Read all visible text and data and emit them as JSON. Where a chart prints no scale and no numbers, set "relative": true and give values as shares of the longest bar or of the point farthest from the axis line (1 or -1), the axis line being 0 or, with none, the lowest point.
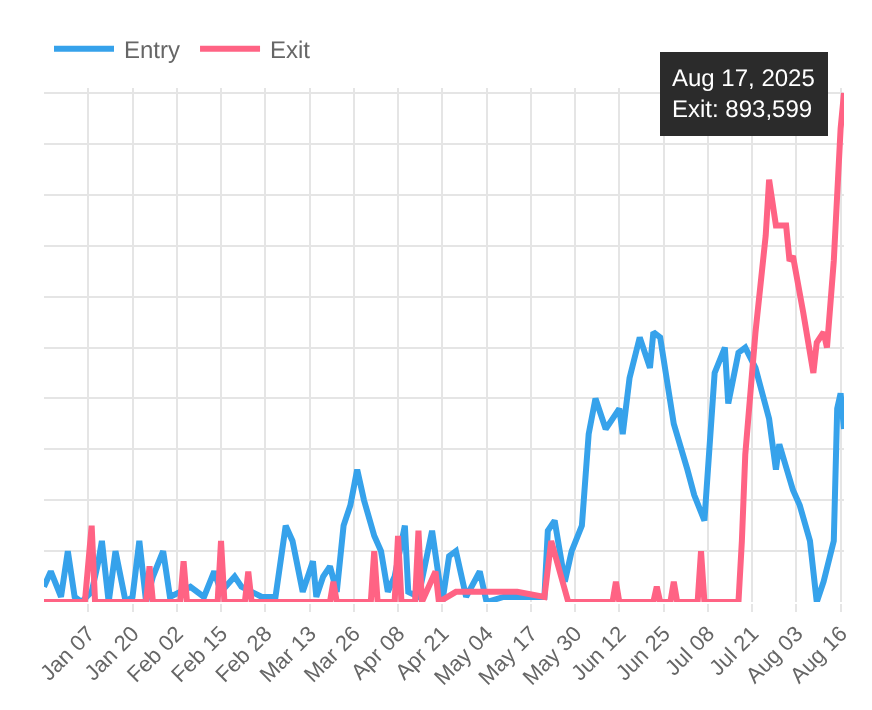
{
  "chart_data": {
    "type": "line",
    "relative": true,
    "grid": true,
    "legend": "top left",
    "marker": "none",
    "line_style": "solid",
    "xlim": [
      "2024-12-25",
      "2025-08-17"
    ],
    "xticks": [
      {
        "value": "2025-01-07",
        "label": "Jan 07"
      },
      {
        "value": "2025-01-20",
        "label": "Jan 20"
      },
      {
        "value": "2025-02-02",
        "label": "Feb 02"
      },
      {
        "value": "2025-02-15",
        "label": "Feb 15"
      },
      {
        "value": "2025-02-28",
        "label": "Feb 28"
      },
      {
        "value": "2025-03-13",
        "label": "Mar 13"
      },
      {
        "value": "2025-03-26",
        "label": "Mar 26"
      },
      {
        "value": "2025-04-08",
        "label": "Apr 08"
      },
      {
        "value": "2025-04-21",
        "label": "Apr 21"
      },
      {
        "value": "2025-05-04",
        "label": "May 04"
      },
      {
        "value": "2025-05-17",
        "label": "May 17"
      },
      {
        "value": "2025-05-30",
        "label": "May 30"
      },
      {
        "value": "2025-06-12",
        "label": "Jun 12"
      },
      {
        "value": "2025-06-25",
        "label": "Jun 25"
      },
      {
        "value": "2025-07-08",
        "label": "Jul 08"
      },
      {
        "value": "2025-07-21",
        "label": "Jul 21"
      },
      {
        "value": "2025-08-03",
        "label": "Aug 03"
      },
      {
        "value": "2025-08-16",
        "label": "Aug 16"
      }
    ],
    "series": [
      {
        "name": "Entry",
        "color": "#36a2eb",
        "x": [
          "2024-12-25",
          "2024-12-27",
          "2024-12-30",
          "2025-01-01",
          "2025-01-03",
          "2025-01-05",
          "2025-01-08",
          "2025-01-10",
          "2025-01-11",
          "2025-01-13",
          "2025-01-15",
          "2025-01-18",
          "2025-01-20",
          "2025-01-22",
          "2025-01-24",
          "2025-01-26",
          "2025-01-29",
          "2025-01-31",
          "2025-02-03",
          "2025-02-06",
          "2025-02-10",
          "2025-02-13",
          "2025-02-15",
          "2025-02-19",
          "2025-02-21",
          "2025-02-24",
          "2025-02-27",
          "2025-03-03",
          "2025-03-06",
          "2025-03-08",
          "2025-03-11",
          "2025-03-13",
          "2025-03-14",
          "2025-03-15",
          "2025-03-17",
          "2025-03-19",
          "2025-03-21",
          "2025-03-23",
          "2025-03-25",
          "2025-03-27",
          "2025-03-29",
          "2025-04-01",
          "2025-04-03",
          "2025-04-05",
          "2025-04-07",
          "2025-04-10",
          "2025-04-11",
          "2025-04-14",
          "2025-04-18",
          "2025-04-21",
          "2025-04-23",
          "2025-04-25",
          "2025-04-28",
          "2025-05-02",
          "2025-05-04",
          "2025-05-09",
          "2025-05-21",
          "2025-05-22",
          "2025-05-24",
          "2025-05-27",
          "2025-05-29",
          "2025-06-01",
          "2025-06-03",
          "2025-06-05",
          "2025-06-08",
          "2025-06-10",
          "2025-06-12",
          "2025-06-13",
          "2025-06-15",
          "2025-06-18",
          "2025-06-21",
          "2025-06-22",
          "2025-06-24",
          "2025-06-28",
          "2025-07-02",
          "2025-07-04",
          "2025-07-07",
          "2025-07-10",
          "2025-07-13",
          "2025-07-14",
          "2025-07-17",
          "2025-07-19",
          "2025-07-22",
          "2025-07-26",
          "2025-07-28",
          "2025-07-29",
          "2025-08-02",
          "2025-08-04",
          "2025-08-07",
          "2025-08-09",
          "2025-08-11",
          "2025-08-14",
          "2025-08-15",
          "2025-08-16",
          "2025-08-17"
        ],
        "values": [
          0.03,
          0.06,
          0.01,
          0.1,
          0.01,
          0.0,
          0.02,
          0.08,
          0.12,
          0.0,
          0.1,
          0.0,
          0.01,
          0.12,
          0.0,
          0.05,
          0.1,
          0.01,
          0.02,
          0.03,
          0.01,
          0.06,
          0.02,
          0.05,
          0.03,
          0.02,
          0.01,
          0.01,
          0.15,
          0.12,
          0.02,
          0.06,
          0.08,
          0.01,
          0.05,
          0.07,
          0.02,
          0.15,
          0.19,
          0.26,
          0.2,
          0.13,
          0.1,
          0.02,
          0.05,
          0.15,
          0.02,
          0.01,
          0.14,
          0.0,
          0.09,
          0.1,
          0.01,
          0.06,
          0.0,
          0.01,
          0.01,
          0.14,
          0.16,
          0.04,
          0.1,
          0.15,
          0.33,
          0.4,
          0.34,
          0.36,
          0.38,
          0.33,
          0.44,
          0.52,
          0.46,
          0.53,
          0.52,
          0.35,
          0.26,
          0.21,
          0.16,
          0.45,
          0.5,
          0.39,
          0.49,
          0.5,
          0.46,
          0.36,
          0.26,
          0.31,
          0.22,
          0.19,
          0.12,
          0.0,
          0.04,
          0.12,
          0.38,
          0.41,
          0.34
        ]
      },
      {
        "name": "Exit",
        "color": "#ff6384",
        "x": [
          "2024-12-25",
          "2025-01-06",
          "2025-01-08",
          "2025-01-09",
          "2025-01-24",
          "2025-01-25",
          "2025-01-26",
          "2025-02-03",
          "2025-02-04",
          "2025-02-05",
          "2025-02-14",
          "2025-02-15",
          "2025-02-16",
          "2025-02-22",
          "2025-02-23",
          "2025-02-24",
          "2025-03-19",
          "2025-03-20",
          "2025-03-21",
          "2025-03-31",
          "2025-04-01",
          "2025-04-02",
          "2025-04-07",
          "2025-04-08",
          "2025-04-09",
          "2025-04-13",
          "2025-04-14",
          "2025-04-15",
          "2025-04-19",
          "2025-04-20",
          "2025-04-25",
          "2025-05-13",
          "2025-05-21",
          "2025-05-23",
          "2025-05-28",
          "2025-06-10",
          "2025-06-11",
          "2025-06-12",
          "2025-06-22",
          "2025-06-23",
          "2025-06-24",
          "2025-06-27",
          "2025-06-28",
          "2025-06-29",
          "2025-07-05",
          "2025-07-06",
          "2025-07-07",
          "2025-07-17",
          "2025-07-18",
          "2025-07-19",
          "2025-07-22",
          "2025-07-25",
          "2025-07-26",
          "2025-07-28",
          "2025-07-31",
          "2025-08-01",
          "2025-08-02",
          "2025-08-05",
          "2025-08-08",
          "2025-08-09",
          "2025-08-11",
          "2025-08-12",
          "2025-08-14",
          "2025-08-16",
          "2025-08-17"
        ],
        "values": [
          0.0,
          0.0,
          0.15,
          0.0,
          0.0,
          0.07,
          0.0,
          0.0,
          0.08,
          0.0,
          0.0,
          0.12,
          0.0,
          0.0,
          0.06,
          0.0,
          0.0,
          0.04,
          0.0,
          0.0,
          0.1,
          0.0,
          0.0,
          0.13,
          0.0,
          0.0,
          0.14,
          0.0,
          0.06,
          0.0,
          0.02,
          0.02,
          0.01,
          0.12,
          0.0,
          0.0,
          0.04,
          0.0,
          0.0,
          0.03,
          0.0,
          0.0,
          0.04,
          0.0,
          0.0,
          0.1,
          0.0,
          0.0,
          0.12,
          0.29,
          0.53,
          0.72,
          0.83,
          0.74,
          0.74,
          0.67,
          0.68,
          0.57,
          0.45,
          0.51,
          0.53,
          0.5,
          0.67,
          0.93,
          1.0
        ]
      }
    ],
    "annotations": [
      {
        "text": "Aug 17, 2025\nExit: 893,599",
        "x": "2025-08-17",
        "y": 1.0
      }
    ]
  }
}
